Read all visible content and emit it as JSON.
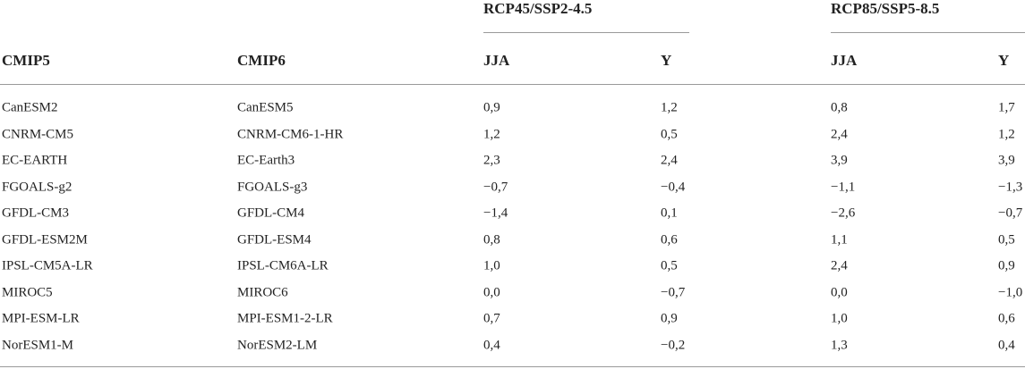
{
  "table": {
    "groups": [
      "RCP45/SSP2-4.5",
      "RCP85/SSP5-8.5"
    ],
    "columns": [
      "CMIP5",
      "CMIP6",
      "JJA",
      "Y",
      "JJA",
      "Y"
    ],
    "rows": [
      [
        "CanESM2",
        "CanESM5",
        "0,9",
        "1,2",
        "0,8",
        "1,7"
      ],
      [
        "CNRM-CM5",
        "CNRM-CM6-1-HR",
        "1,2",
        "0,5",
        "2,4",
        "1,2"
      ],
      [
        "EC-EARTH",
        "EC-Earth3",
        "2,3",
        "2,4",
        "3,9",
        "3,9"
      ],
      [
        "FGOALS-g2",
        "FGOALS-g3",
        "−0,7",
        "−0,4",
        "−1,1",
        "−1,3"
      ],
      [
        "GFDL-CM3",
        "GFDL-CM4",
        "−1,4",
        "0,1",
        "−2,6",
        "−0,7"
      ],
      [
        "GFDL-ESM2M",
        "GFDL-ESM4",
        "0,8",
        "0,6",
        "1,1",
        "0,5"
      ],
      [
        "IPSL-CM5A-LR",
        "IPSL-CM6A-LR",
        "1,0",
        "0,5",
        "2,4",
        "0,9"
      ],
      [
        "MIROC5",
        "MIROC6",
        "0,0",
        "−0,7",
        "0,0",
        "−1,0"
      ],
      [
        "MPI-ESM-LR",
        "MPI-ESM1-2-LR",
        "0,7",
        "0,9",
        "1,0",
        "0,6"
      ],
      [
        "NorESM1-M",
        "NorESM2-LM",
        "0,4",
        "−0,2",
        "1,3",
        "0,4"
      ]
    ]
  }
}
